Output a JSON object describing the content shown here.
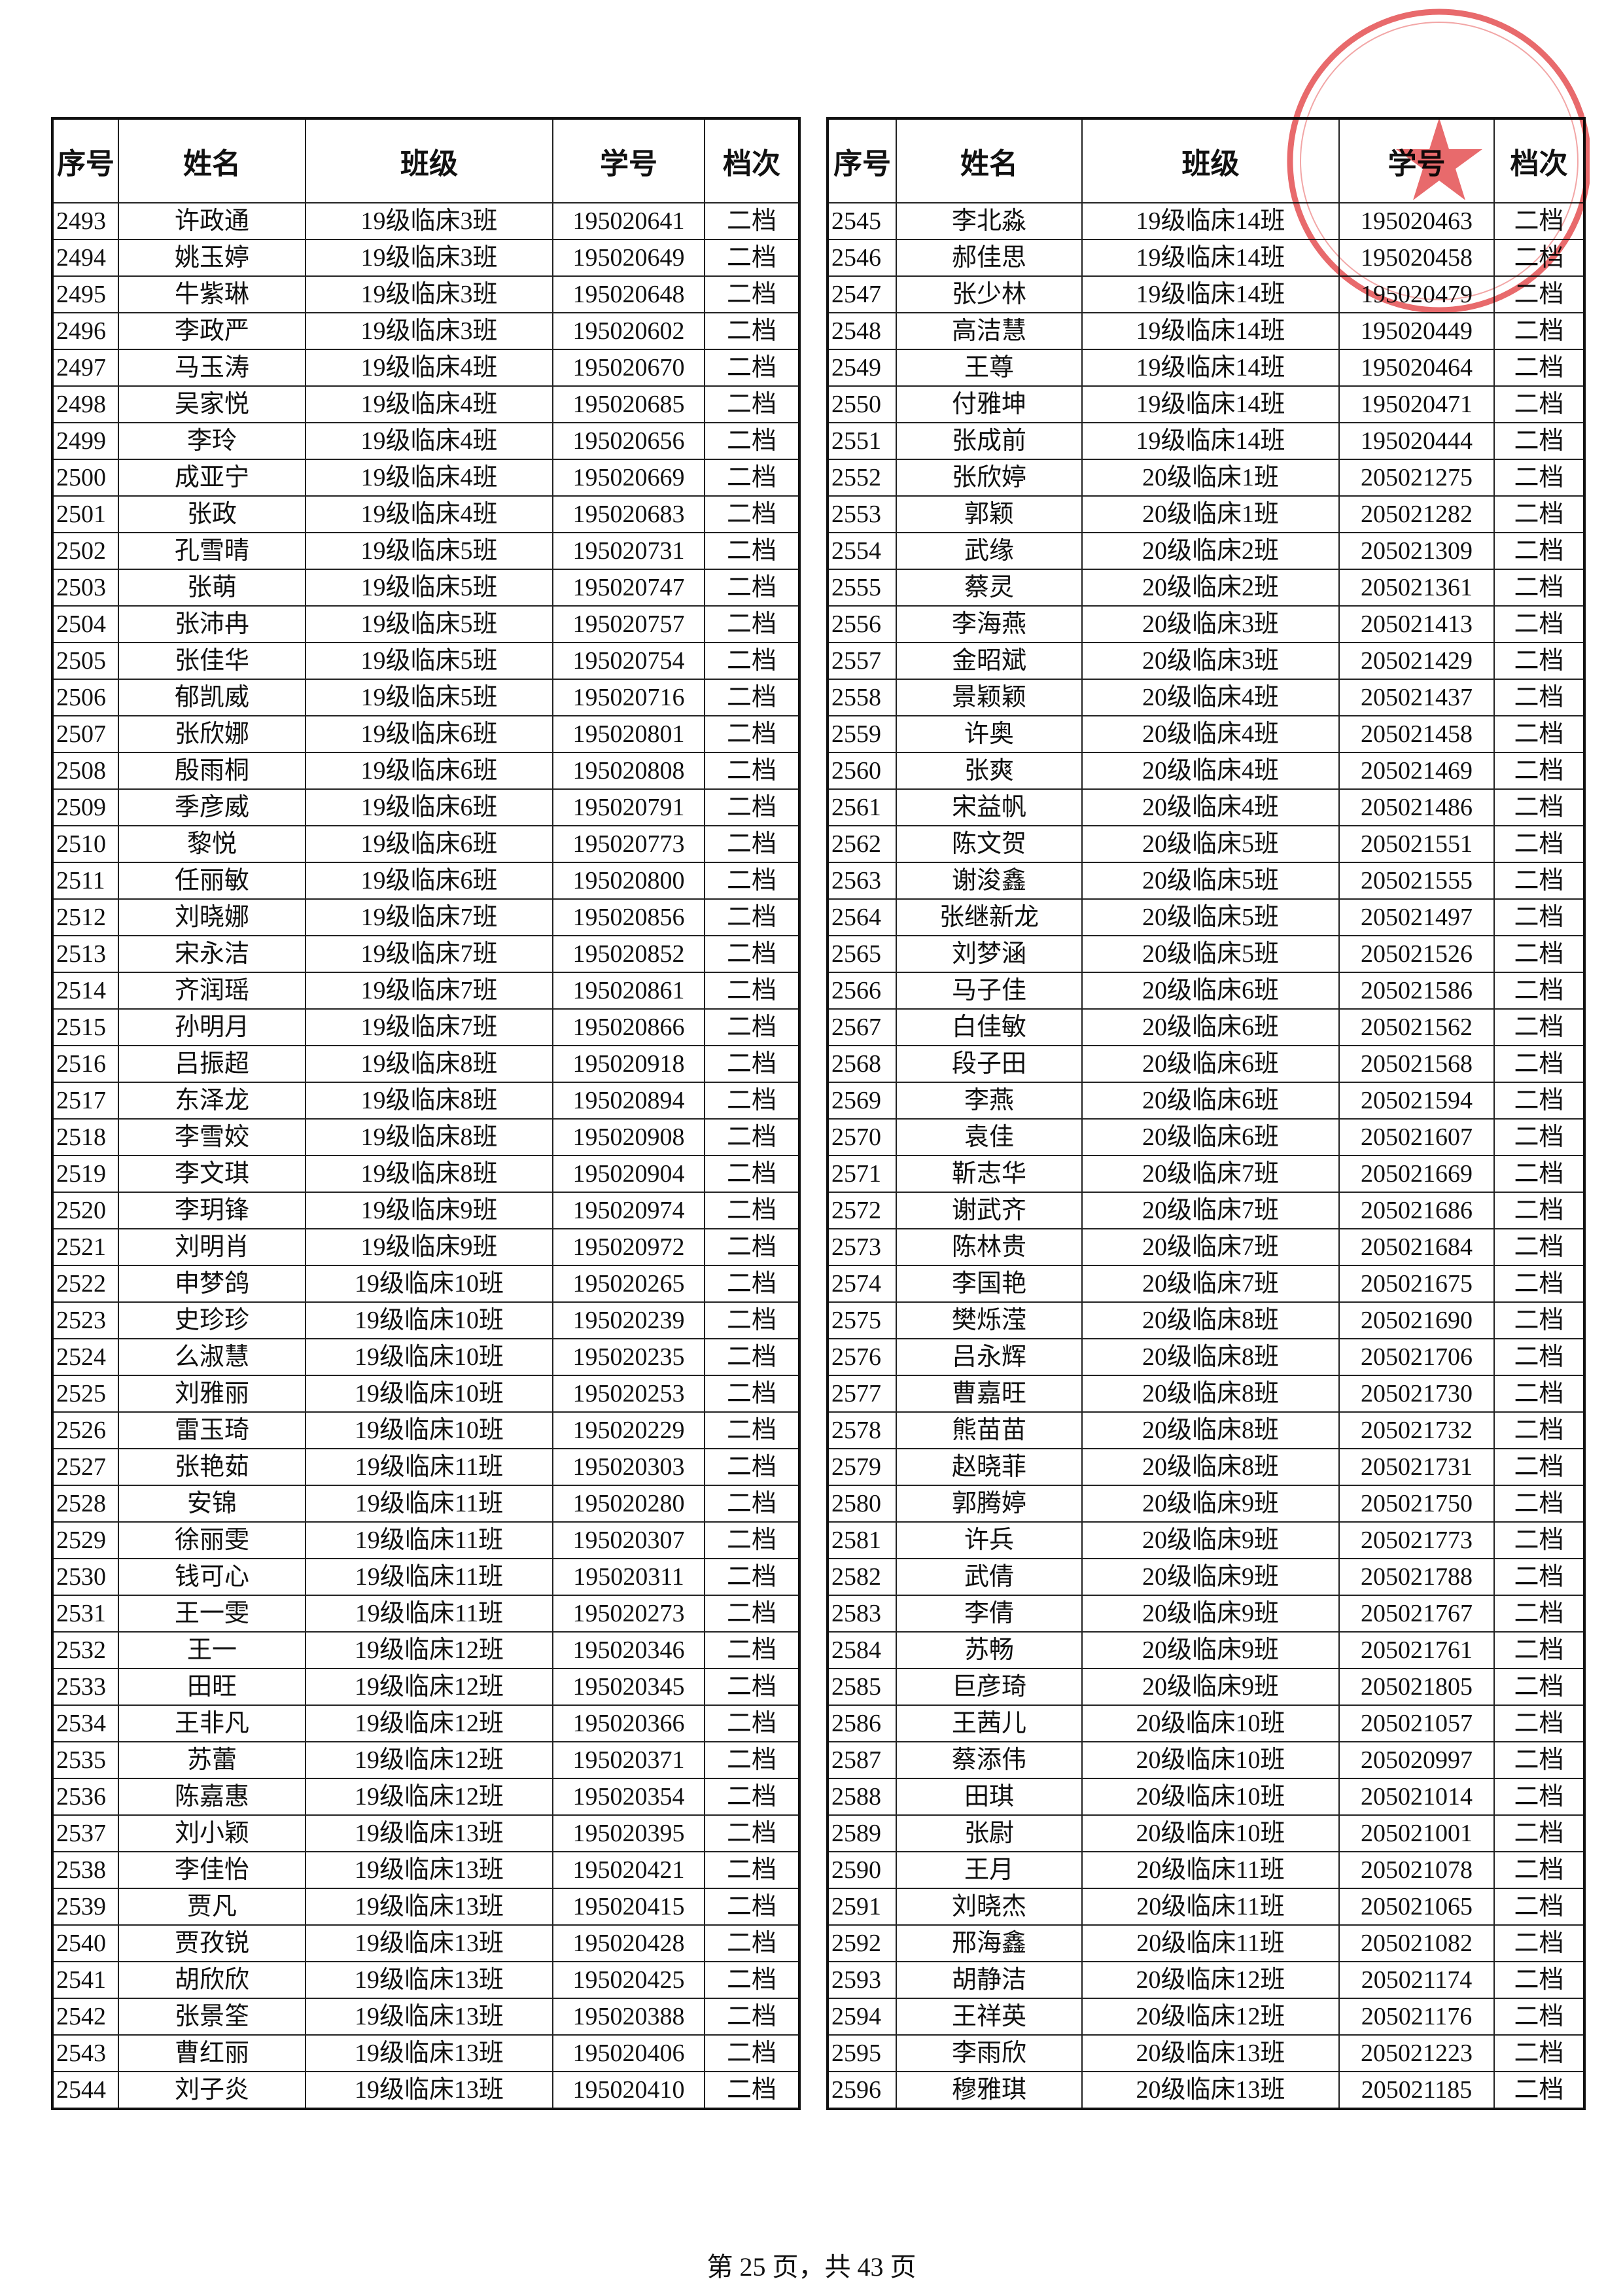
{
  "tables": [
    {
      "headers": [
        "序号",
        "姓名",
        "班级",
        "学号",
        "档次"
      ],
      "rows": [
        [
          "2493",
          "许政通",
          "19级临床3班",
          "195020641",
          "二档"
        ],
        [
          "2494",
          "姚玉婷",
          "19级临床3班",
          "195020649",
          "二档"
        ],
        [
          "2495",
          "牛紫琳",
          "19级临床3班",
          "195020648",
          "二档"
        ],
        [
          "2496",
          "李政严",
          "19级临床3班",
          "195020602",
          "二档"
        ],
        [
          "2497",
          "马玉涛",
          "19级临床4班",
          "195020670",
          "二档"
        ],
        [
          "2498",
          "吴家悦",
          "19级临床4班",
          "195020685",
          "二档"
        ],
        [
          "2499",
          "李玲",
          "19级临床4班",
          "195020656",
          "二档"
        ],
        [
          "2500",
          "成亚宁",
          "19级临床4班",
          "195020669",
          "二档"
        ],
        [
          "2501",
          "张政",
          "19级临床4班",
          "195020683",
          "二档"
        ],
        [
          "2502",
          "孔雪晴",
          "19级临床5班",
          "195020731",
          "二档"
        ],
        [
          "2503",
          "张萌",
          "19级临床5班",
          "195020747",
          "二档"
        ],
        [
          "2504",
          "张沛冉",
          "19级临床5班",
          "195020757",
          "二档"
        ],
        [
          "2505",
          "张佳华",
          "19级临床5班",
          "195020754",
          "二档"
        ],
        [
          "2506",
          "郁凯威",
          "19级临床5班",
          "195020716",
          "二档"
        ],
        [
          "2507",
          "张欣娜",
          "19级临床6班",
          "195020801",
          "二档"
        ],
        [
          "2508",
          "殷雨桐",
          "19级临床6班",
          "195020808",
          "二档"
        ],
        [
          "2509",
          "季彦威",
          "19级临床6班",
          "195020791",
          "二档"
        ],
        [
          "2510",
          "黎悦",
          "19级临床6班",
          "195020773",
          "二档"
        ],
        [
          "2511",
          "任丽敏",
          "19级临床6班",
          "195020800",
          "二档"
        ],
        [
          "2512",
          "刘晓娜",
          "19级临床7班",
          "195020856",
          "二档"
        ],
        [
          "2513",
          "宋永洁",
          "19级临床7班",
          "195020852",
          "二档"
        ],
        [
          "2514",
          "齐润瑶",
          "19级临床7班",
          "195020861",
          "二档"
        ],
        [
          "2515",
          "孙明月",
          "19级临床7班",
          "195020866",
          "二档"
        ],
        [
          "2516",
          "吕振超",
          "19级临床8班",
          "195020918",
          "二档"
        ],
        [
          "2517",
          "东泽龙",
          "19级临床8班",
          "195020894",
          "二档"
        ],
        [
          "2518",
          "李雪姣",
          "19级临床8班",
          "195020908",
          "二档"
        ],
        [
          "2519",
          "李文琪",
          "19级临床8班",
          "195020904",
          "二档"
        ],
        [
          "2520",
          "李玥锋",
          "19级临床9班",
          "195020974",
          "二档"
        ],
        [
          "2521",
          "刘明肖",
          "19级临床9班",
          "195020972",
          "二档"
        ],
        [
          "2522",
          "申梦鸽",
          "19级临床10班",
          "195020265",
          "二档"
        ],
        [
          "2523",
          "史珍珍",
          "19级临床10班",
          "195020239",
          "二档"
        ],
        [
          "2524",
          "么淑慧",
          "19级临床10班",
          "195020235",
          "二档"
        ],
        [
          "2525",
          "刘雅丽",
          "19级临床10班",
          "195020253",
          "二档"
        ],
        [
          "2526",
          "雷玉琦",
          "19级临床10班",
          "195020229",
          "二档"
        ],
        [
          "2527",
          "张艳茹",
          "19级临床11班",
          "195020303",
          "二档"
        ],
        [
          "2528",
          "安锦",
          "19级临床11班",
          "195020280",
          "二档"
        ],
        [
          "2529",
          "徐丽雯",
          "19级临床11班",
          "195020307",
          "二档"
        ],
        [
          "2530",
          "钱可心",
          "19级临床11班",
          "195020311",
          "二档"
        ],
        [
          "2531",
          "王一雯",
          "19级临床11班",
          "195020273",
          "二档"
        ],
        [
          "2532",
          "王一",
          "19级临床12班",
          "195020346",
          "二档"
        ],
        [
          "2533",
          "田旺",
          "19级临床12班",
          "195020345",
          "二档"
        ],
        [
          "2534",
          "王非凡",
          "19级临床12班",
          "195020366",
          "二档"
        ],
        [
          "2535",
          "苏蕾",
          "19级临床12班",
          "195020371",
          "二档"
        ],
        [
          "2536",
          "陈嘉惠",
          "19级临床12班",
          "195020354",
          "二档"
        ],
        [
          "2537",
          "刘小颖",
          "19级临床13班",
          "195020395",
          "二档"
        ],
        [
          "2538",
          "李佳怡",
          "19级临床13班",
          "195020421",
          "二档"
        ],
        [
          "2539",
          "贾凡",
          "19级临床13班",
          "195020415",
          "二档"
        ],
        [
          "2540",
          "贾孜锐",
          "19级临床13班",
          "195020428",
          "二档"
        ],
        [
          "2541",
          "胡欣欣",
          "19级临床13班",
          "195020425",
          "二档"
        ],
        [
          "2542",
          "张景筌",
          "19级临床13班",
          "195020388",
          "二档"
        ],
        [
          "2543",
          "曹红丽",
          "19级临床13班",
          "195020406",
          "二档"
        ],
        [
          "2544",
          "刘子炎",
          "19级临床13班",
          "195020410",
          "二档"
        ]
      ]
    },
    {
      "headers": [
        "序号",
        "姓名",
        "班级",
        "学号",
        "档次"
      ],
      "rows": [
        [
          "2545",
          "李北淼",
          "19级临床14班",
          "195020463",
          "二档"
        ],
        [
          "2546",
          "郝佳思",
          "19级临床14班",
          "195020458",
          "二档"
        ],
        [
          "2547",
          "张少林",
          "19级临床14班",
          "195020479",
          "二档"
        ],
        [
          "2548",
          "高洁慧",
          "19级临床14班",
          "195020449",
          "二档"
        ],
        [
          "2549",
          "王尊",
          "19级临床14班",
          "195020464",
          "二档"
        ],
        [
          "2550",
          "付雅坤",
          "19级临床14班",
          "195020471",
          "二档"
        ],
        [
          "2551",
          "张成前",
          "19级临床14班",
          "195020444",
          "二档"
        ],
        [
          "2552",
          "张欣婷",
          "20级临床1班",
          "205021275",
          "二档"
        ],
        [
          "2553",
          "郭颖",
          "20级临床1班",
          "205021282",
          "二档"
        ],
        [
          "2554",
          "武缘",
          "20级临床2班",
          "205021309",
          "二档"
        ],
        [
          "2555",
          "蔡灵",
          "20级临床2班",
          "205021361",
          "二档"
        ],
        [
          "2556",
          "李海燕",
          "20级临床3班",
          "205021413",
          "二档"
        ],
        [
          "2557",
          "金昭斌",
          "20级临床3班",
          "205021429",
          "二档"
        ],
        [
          "2558",
          "景颖颖",
          "20级临床4班",
          "205021437",
          "二档"
        ],
        [
          "2559",
          "许奥",
          "20级临床4班",
          "205021458",
          "二档"
        ],
        [
          "2560",
          "张爽",
          "20级临床4班",
          "205021469",
          "二档"
        ],
        [
          "2561",
          "宋益帆",
          "20级临床4班",
          "205021486",
          "二档"
        ],
        [
          "2562",
          "陈文贺",
          "20级临床5班",
          "205021551",
          "二档"
        ],
        [
          "2563",
          "谢浚鑫",
          "20级临床5班",
          "205021555",
          "二档"
        ],
        [
          "2564",
          "张继新龙",
          "20级临床5班",
          "205021497",
          "二档"
        ],
        [
          "2565",
          "刘梦涵",
          "20级临床5班",
          "205021526",
          "二档"
        ],
        [
          "2566",
          "马子佳",
          "20级临床6班",
          "205021586",
          "二档"
        ],
        [
          "2567",
          "白佳敏",
          "20级临床6班",
          "205021562",
          "二档"
        ],
        [
          "2568",
          "段子田",
          "20级临床6班",
          "205021568",
          "二档"
        ],
        [
          "2569",
          "李燕",
          "20级临床6班",
          "205021594",
          "二档"
        ],
        [
          "2570",
          "袁佳",
          "20级临床6班",
          "205021607",
          "二档"
        ],
        [
          "2571",
          "靳志华",
          "20级临床7班",
          "205021669",
          "二档"
        ],
        [
          "2572",
          "谢武齐",
          "20级临床7班",
          "205021686",
          "二档"
        ],
        [
          "2573",
          "陈林贵",
          "20级临床7班",
          "205021684",
          "二档"
        ],
        [
          "2574",
          "李国艳",
          "20级临床7班",
          "205021675",
          "二档"
        ],
        [
          "2575",
          "樊烁滢",
          "20级临床8班",
          "205021690",
          "二档"
        ],
        [
          "2576",
          "吕永辉",
          "20级临床8班",
          "205021706",
          "二档"
        ],
        [
          "2577",
          "曹嘉旺",
          "20级临床8班",
          "205021730",
          "二档"
        ],
        [
          "2578",
          "熊苗苗",
          "20级临床8班",
          "205021732",
          "二档"
        ],
        [
          "2579",
          "赵晓菲",
          "20级临床8班",
          "205021731",
          "二档"
        ],
        [
          "2580",
          "郭腾婷",
          "20级临床9班",
          "205021750",
          "二档"
        ],
        [
          "2581",
          "许兵",
          "20级临床9班",
          "205021773",
          "二档"
        ],
        [
          "2582",
          "武倩",
          "20级临床9班",
          "205021788",
          "二档"
        ],
        [
          "2583",
          "李倩",
          "20级临床9班",
          "205021767",
          "二档"
        ],
        [
          "2584",
          "苏畅",
          "20级临床9班",
          "205021761",
          "二档"
        ],
        [
          "2585",
          "巨彦琦",
          "20级临床9班",
          "205021805",
          "二档"
        ],
        [
          "2586",
          "王茜儿",
          "20级临床10班",
          "205021057",
          "二档"
        ],
        [
          "2587",
          "蔡添伟",
          "20级临床10班",
          "205020997",
          "二档"
        ],
        [
          "2588",
          "田琪",
          "20级临床10班",
          "205021014",
          "二档"
        ],
        [
          "2589",
          "张尉",
          "20级临床10班",
          "205021001",
          "二档"
        ],
        [
          "2590",
          "王月",
          "20级临床11班",
          "205021078",
          "二档"
        ],
        [
          "2591",
          "刘晓杰",
          "20级临床11班",
          "205021065",
          "二档"
        ],
        [
          "2592",
          "邢海鑫",
          "20级临床11班",
          "205021082",
          "二档"
        ],
        [
          "2593",
          "胡静洁",
          "20级临床12班",
          "205021174",
          "二档"
        ],
        [
          "2594",
          "王祥英",
          "20级临床12班",
          "205021176",
          "二档"
        ],
        [
          "2595",
          "李雨欣",
          "20级临床13班",
          "205021223",
          "二档"
        ],
        [
          "2596",
          "穆雅琪",
          "20级临床13班",
          "205021185",
          "二档"
        ]
      ]
    }
  ],
  "footer": "第 25 页，共 43 页"
}
